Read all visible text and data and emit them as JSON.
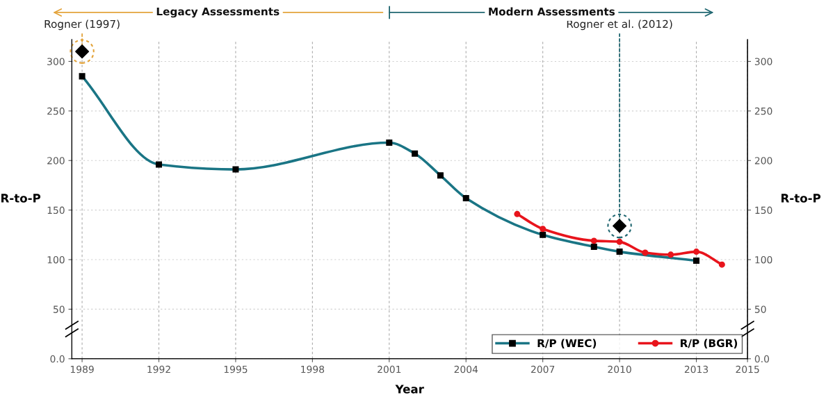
{
  "chart_data": {
    "type": "line",
    "xlabel": "Year",
    "ylabel": "R-to-P",
    "y2label": "R-to-P",
    "xlim": [
      1988.6,
      2015
    ],
    "xticks": [
      1989,
      1992,
      1995,
      1998,
      2001,
      2004,
      2007,
      2010,
      2013,
      2015
    ],
    "ylim": [
      0,
      322
    ],
    "yticks": [
      {
        "value": 0,
        "label": "0.0"
      },
      50,
      100,
      150,
      200,
      250,
      300
    ],
    "y2lim": [
      0,
      322
    ],
    "y2ticks": [
      {
        "value": 0,
        "label": "0.0"
      },
      50,
      100,
      150,
      200,
      250,
      300
    ],
    "grid": true,
    "legend": "bottom right",
    "series": [
      {
        "name": "R/P (WEC)",
        "color": "#1a7585",
        "marker": "square",
        "x": [
          1989,
          1992,
          1995,
          2001,
          2002,
          2003,
          2004,
          2007,
          2009,
          2010,
          2013
        ],
        "values": [
          285,
          196,
          191,
          218,
          207,
          185,
          162,
          125,
          113,
          108,
          99
        ]
      },
      {
        "name": "R/P (BGR)",
        "color": "#e8141c",
        "marker": "circle",
        "x": [
          2006,
          2007,
          2009,
          2010,
          2011,
          2012,
          2013,
          2014
        ],
        "values": [
          146,
          131,
          119,
          118,
          107,
          105,
          108,
          95
        ]
      },
      {
        "type": "scatter",
        "color": "#000000",
        "marker": "diamond",
        "x": [
          1989,
          2010
        ],
        "values": [
          310,
          134
        ]
      }
    ],
    "annotations": [
      "Legacy Assessments",
      "Modern Assessments",
      {
        "text": "Rogner (1997)",
        "x": 1989,
        "y": 310
      },
      {
        "text": "Rogner et al. (2012)",
        "x": 2010,
        "y": 134
      }
    ]
  }
}
